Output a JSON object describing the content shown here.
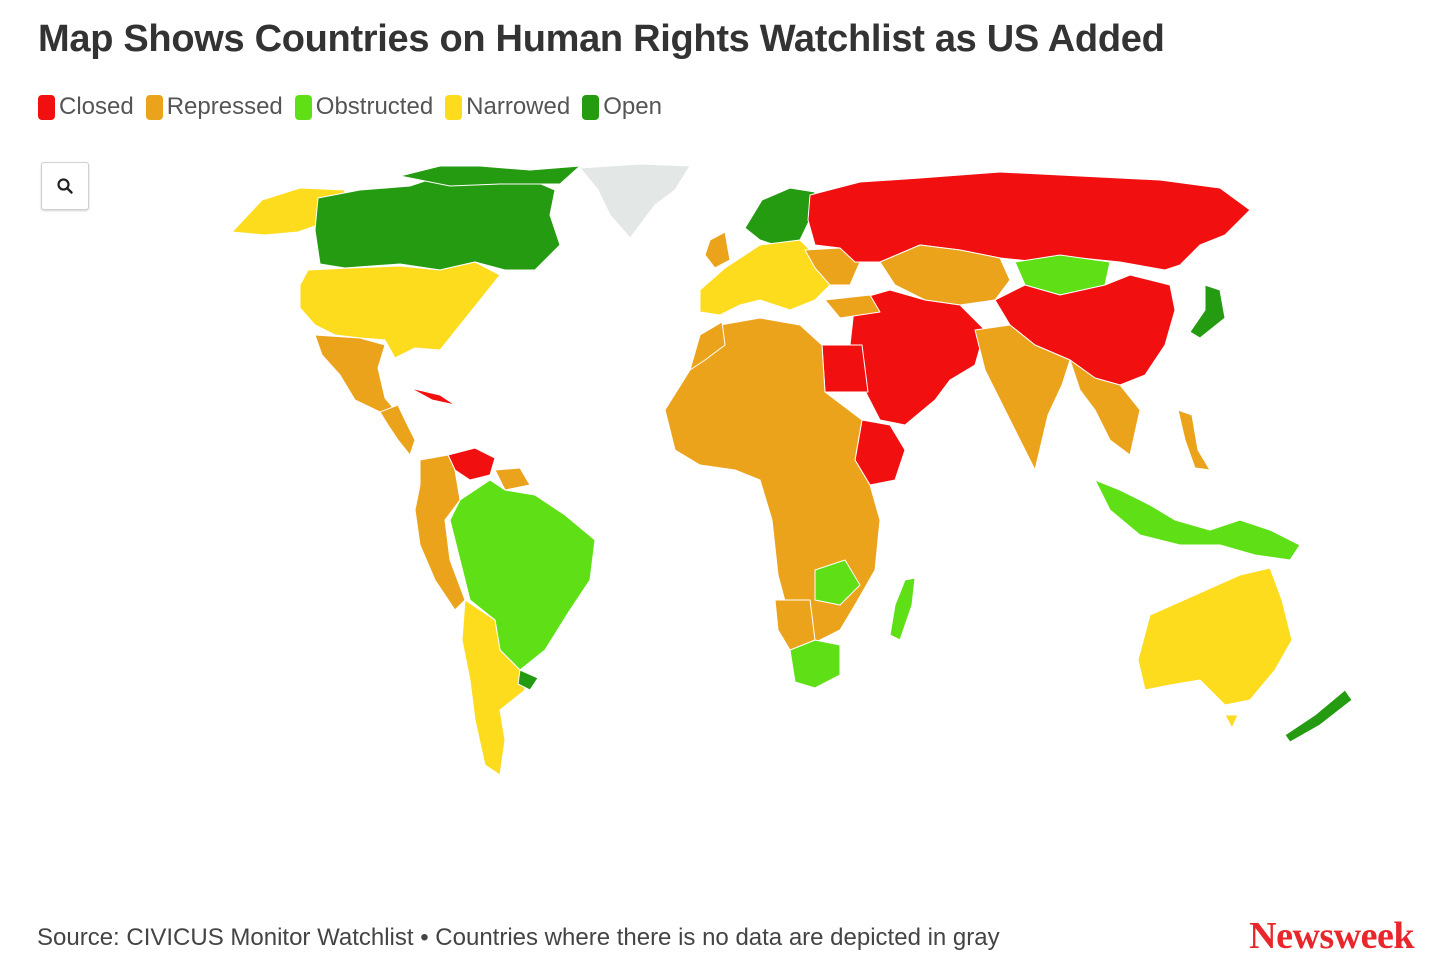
{
  "title": "Map Shows Countries on Human Rights Watchlist as US Added",
  "legend": [
    {
      "label": "Closed",
      "color": "#f20f0f"
    },
    {
      "label": "Repressed",
      "color": "#eba31c"
    },
    {
      "label": "Obstructed",
      "color": "#5fe016"
    },
    {
      "label": "Narrowed",
      "color": "#fddb1d"
    },
    {
      "label": "Open",
      "color": "#249b10"
    }
  ],
  "no_data_color": "#e3e7e6",
  "zoom_control": {
    "icon": "search-icon"
  },
  "source": "Source: CIVICUS Monitor Watchlist • Countries where there is no data are depicted in gray",
  "brand": "Newsweek",
  "regions": {
    "alaska": "Narrowed",
    "canada": "Open",
    "greenland": "No data",
    "usa": "Narrowed",
    "mexico": "Repressed",
    "central_america": "Repressed",
    "cuba": "Closed",
    "venezuela": "Closed",
    "colombia_peru": "Repressed",
    "brazil": "Obstructed",
    "argentina_chile": "Narrowed",
    "uruguay": "Open",
    "scandinavia": "Open",
    "western_europe": "Narrowed",
    "russia": "Closed",
    "china": "Closed",
    "mongolia": "Obstructed",
    "kazakhstan": "Repressed",
    "middle_east": "Closed",
    "egypt": "Closed",
    "ethiopia_eritrea": "Closed",
    "india": "Repressed",
    "africa": "Repressed",
    "southern_africa": "Obstructed",
    "madagascar": "Obstructed",
    "southeast_asia": "Repressed",
    "indonesia": "Obstructed",
    "japan": "Open",
    "australia": "Narrowed",
    "new_zealand": "Open"
  }
}
